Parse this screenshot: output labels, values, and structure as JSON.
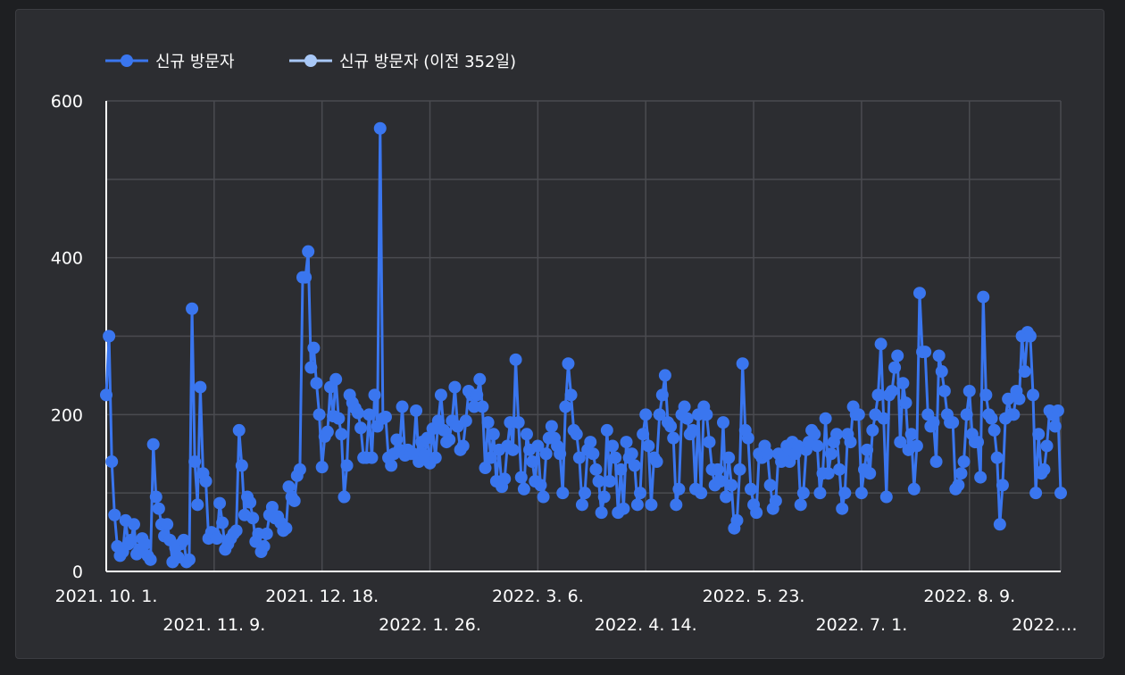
{
  "colors": {
    "current": "#3a76ef",
    "previous": "#a8c8f7",
    "grid": "#4a4b50",
    "axis": "#ffffff",
    "background": "#2c2d31"
  },
  "chart_data": {
    "type": "line",
    "legend": [
      {
        "name": "신규 방문자",
        "color": "#3a76ef"
      },
      {
        "name": "신규 방문자 (이전 352일)",
        "color": "#a8c8f7"
      }
    ],
    "legend_position": "top-left",
    "ylim": [
      0,
      600
    ],
    "yticks": [
      "0",
      "200",
      "400",
      "600"
    ],
    "xticks": [
      "2021. 10. 1.",
      "2021. 11. 9.",
      "2021. 12. 18.",
      "2022. 1. 26.",
      "2022. 3. 6.",
      "2022. 4. 14.",
      "2022. 5. 23.",
      "2022. 7. 1.",
      "2022. 8. 9.",
      "2022.…"
    ],
    "x_start": "2021-10-01",
    "grid": true,
    "series": [
      {
        "name": "신규 방문자",
        "values": [
          225,
          300,
          140,
          72,
          32,
          20,
          25,
          65,
          35,
          40,
          60,
          22,
          28,
          42,
          35,
          20,
          15,
          162,
          95,
          80,
          60,
          45,
          60,
          40,
          12,
          30,
          18,
          35,
          40,
          12,
          15,
          335,
          140,
          85,
          235,
          125,
          115,
          42,
          50,
          48,
          42,
          87,
          62,
          28,
          35,
          42,
          48,
          52,
          180,
          135,
          72,
          95,
          88,
          68,
          38,
          48,
          25,
          32,
          48,
          72,
          82,
          68,
          70,
          62,
          52,
          55,
          108,
          95,
          90,
          122,
          130,
          375,
          375,
          408,
          260,
          285,
          240,
          200,
          133,
          172,
          178,
          235,
          198,
          245,
          195,
          175,
          95,
          135,
          225,
          215,
          208,
          202,
          183,
          145,
          145,
          200,
          145,
          225,
          185,
          565,
          195,
          197,
          145,
          135,
          150,
          168,
          155,
          210,
          148,
          155,
          150,
          150,
          205,
          140,
          165,
          148,
          170,
          138,
          182,
          145,
          192,
          225,
          180,
          165,
          168,
          192,
          235,
          185,
          155,
          160,
          192,
          230,
          225,
          210,
          225,
          245,
          210,
          132,
          190,
          145,
          175,
          115,
          155,
          108,
          118,
          160,
          190,
          155,
          270,
          190,
          120,
          105,
          175,
          155,
          140,
          115,
          160,
          110,
          95,
          150,
          170,
          185,
          170,
          160,
          150,
          100,
          210,
          265,
          225,
          180,
          175,
          145,
          85,
          100,
          155,
          165,
          150,
          130,
          115,
          75,
          95,
          180,
          115,
          160,
          145,
          75,
          130,
          80,
          165,
          145,
          150,
          135,
          85,
          100,
          175,
          200,
          160,
          85,
          145,
          140,
          200,
          225,
          250,
          190,
          185,
          170,
          85,
          105,
          200,
          210,
          195,
          175,
          180,
          105,
          200,
          100,
          210,
          200,
          165,
          130,
          110,
          130,
          115,
          190,
          95,
          145,
          110,
          55,
          65,
          130,
          265,
          180,
          170,
          105,
          85,
          75,
          150,
          145,
          160,
          150,
          110,
          80,
          90,
          150,
          140,
          150,
          160,
          140,
          165,
          150,
          160,
          85,
          100,
          155,
          165,
          180,
          175,
          160,
          100,
          125,
          195,
          125,
          150,
          165,
          175,
          130,
          80,
          100,
          175,
          165,
          210,
          200,
          200,
          100,
          130,
          155,
          125,
          180,
          200,
          225,
          290,
          195,
          95,
          225,
          230,
          260,
          275,
          165,
          240,
          215,
          155,
          175,
          105,
          160,
          355,
          280,
          280,
          200,
          185,
          190,
          140,
          275,
          255,
          230,
          200,
          190,
          190,
          105,
          110,
          125,
          140,
          200,
          230,
          175,
          165,
          165,
          120,
          350,
          225,
          200,
          195,
          180,
          145,
          60,
          110,
          195,
          220,
          200,
          200,
          230,
          220,
          300,
          255,
          305,
          300,
          225,
          100,
          175,
          125,
          130,
          160,
          205,
          200,
          185,
          205,
          100
        ]
      },
      {
        "name": "신규 방문자 (이전 352일)",
        "values": []
      }
    ]
  }
}
